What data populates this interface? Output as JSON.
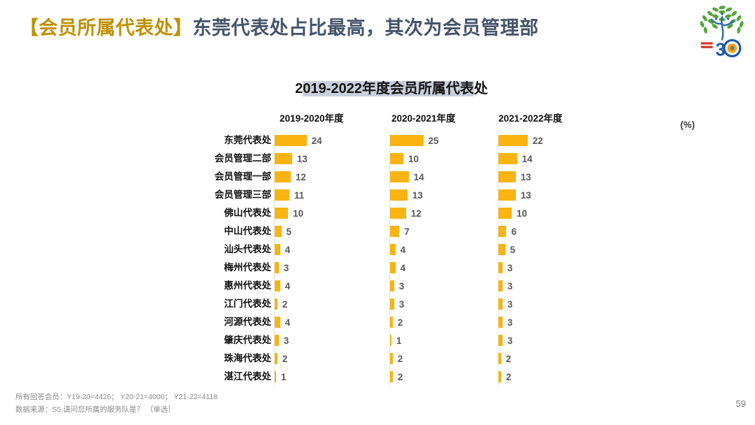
{
  "header": {
    "tag": "【会员所属代表处】",
    "title": "东莞代表处占比最高，其次为会员管理部"
  },
  "chart": {
    "title_prefix": "2",
    "title_highlight": "019-2022年度会员所属代表",
    "title_suffix": "处",
    "unit_label": "(%)",
    "columns": [
      "2019-2020年度",
      "2020-2021年度",
      "2021-2022年度"
    ]
  },
  "chart_data": {
    "type": "bar",
    "orientation": "horizontal",
    "title": "2019-2022年度会员所属代表处",
    "unit": "%",
    "grid": false,
    "legend_position": "column-headers-top",
    "bar_color": "#F9B412",
    "categories": [
      "东莞代表处",
      "会员管理二部",
      "会员管理一部",
      "会员管理三部",
      "佛山代表处",
      "中山代表处",
      "汕头代表处",
      "梅州代表处",
      "惠州代表处",
      "江门代表处",
      "河源代表处",
      "肇庆代表处",
      "珠海代表处",
      "湛江代表处"
    ],
    "series": [
      {
        "name": "2019-2020年度",
        "values": [
          24,
          13,
          12,
          11,
          10,
          5,
          4,
          3,
          4,
          2,
          4,
          3,
          2,
          1
        ]
      },
      {
        "name": "2020-2021年度",
        "values": [
          25,
          10,
          14,
          13,
          12,
          7,
          4,
          4,
          3,
          3,
          2,
          1,
          2,
          2
        ]
      },
      {
        "name": "2021-2022年度",
        "values": [
          22,
          14,
          13,
          13,
          10,
          6,
          5,
          3,
          3,
          3,
          3,
          3,
          2,
          2
        ]
      }
    ]
  },
  "footer": {
    "base_note": "所有回答会员：Y19-20=4426；  Y20-21=4000；  Y21-22=4118",
    "source_note": "数据来源：S5.请问您所属的服务队是？ （单选）",
    "page_number": "59"
  },
  "colors": {
    "tag_text": "#BF9000",
    "title_text": "#44546A",
    "bar": "#F9B412",
    "value_label": "#595959",
    "title_highlight_bg": "#C9CFDC"
  }
}
